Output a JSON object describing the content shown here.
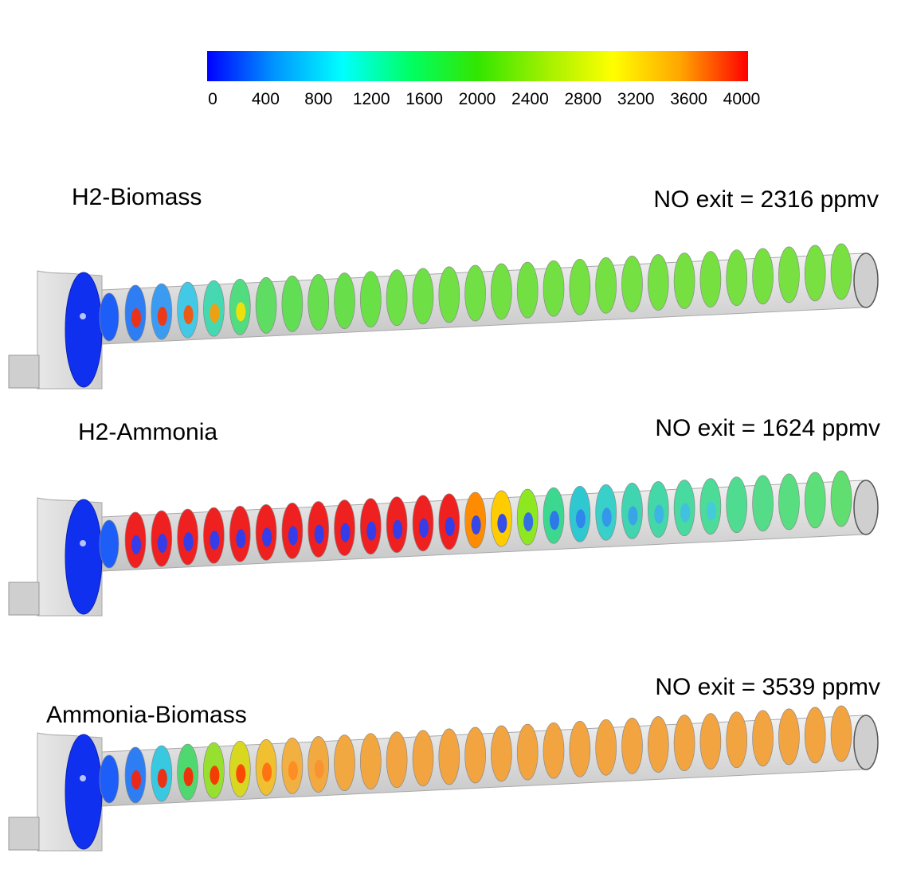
{
  "colorbar": {
    "ticks": [
      "0",
      "400",
      "800",
      "1200",
      "1600",
      "2000",
      "2400",
      "2800",
      "3200",
      "3600",
      "4000"
    ],
    "range": [
      0,
      4000
    ],
    "colors": [
      "#0000ff",
      "#0096ff",
      "#00ffff",
      "#00ff64",
      "#32e600",
      "#a0f000",
      "#ffff00",
      "#ffa500",
      "#ff0000"
    ]
  },
  "cases": [
    {
      "title": "H2-Biomass",
      "exit_label": "NO exit = 2316 ppmv",
      "slice_colors": [
        "#2f7df2",
        "#3a9bf0",
        "#43c8e6",
        "#46d8b0",
        "#52dc80",
        "#5fdc62",
        "#62de55",
        "#66de4e",
        "#68df4a",
        "#6ae047",
        "#6ce046",
        "#6ee045",
        "#70e044",
        "#70e044",
        "#72e043",
        "#72e043",
        "#72e043",
        "#74e042",
        "#74e042",
        "#74e042",
        "#74e042",
        "#76e041",
        "#76e041",
        "#76e041",
        "#76e041",
        "#78e040",
        "#78e040",
        "#78e040"
      ],
      "hotspots": [
        {
          "slice": 1,
          "color": "#ff2a00"
        },
        {
          "slice": 2,
          "color": "#ff3000"
        },
        {
          "slice": 3,
          "color": "#ff5000"
        },
        {
          "slice": 4,
          "color": "#ff9a00"
        },
        {
          "slice": 5,
          "color": "#ffe000"
        }
      ]
    },
    {
      "title": "H2-Ammonia",
      "exit_label": "NO exit = 1624 ppmv",
      "slice_colors": [
        "#ee2020",
        "#ee2020",
        "#ee2020",
        "#ee2020",
        "#ee2020",
        "#ee2020",
        "#ee2020",
        "#ee2020",
        "#ee2020",
        "#ee2020",
        "#ee2020",
        "#ee2020",
        "#ee2020",
        "#ff8c00",
        "#ffcc00",
        "#8ee820",
        "#3cd890",
        "#2fc8d0",
        "#38d0c8",
        "#40d4b0",
        "#44d8a8",
        "#48daa0",
        "#4cdc98",
        "#50dc90",
        "#54dc88",
        "#58de80",
        "#5cde78",
        "#60de70"
      ],
      "hotspots": [
        {
          "slice": 1,
          "color": "#2040ff"
        },
        {
          "slice": 2,
          "color": "#2040ff"
        },
        {
          "slice": 3,
          "color": "#2040ff"
        },
        {
          "slice": 4,
          "color": "#2040ff"
        },
        {
          "slice": 5,
          "color": "#2040ff"
        },
        {
          "slice": 6,
          "color": "#2040ff"
        },
        {
          "slice": 7,
          "color": "#2040ff"
        },
        {
          "slice": 8,
          "color": "#2040ff"
        },
        {
          "slice": 9,
          "color": "#2040ff"
        },
        {
          "slice": 10,
          "color": "#2040ff"
        },
        {
          "slice": 11,
          "color": "#2040ff"
        },
        {
          "slice": 12,
          "color": "#2040ff"
        },
        {
          "slice": 13,
          "color": "#2040ff"
        },
        {
          "slice": 14,
          "color": "#2040ff"
        },
        {
          "slice": 15,
          "color": "#2040ff"
        },
        {
          "slice": 16,
          "color": "#2a60f8"
        },
        {
          "slice": 17,
          "color": "#2a70f4"
        },
        {
          "slice": 18,
          "color": "#3080f0"
        },
        {
          "slice": 19,
          "color": "#3490ee"
        },
        {
          "slice": 20,
          "color": "#38a0ec"
        },
        {
          "slice": 21,
          "color": "#3cb0ea"
        },
        {
          "slice": 22,
          "color": "#40bce6"
        },
        {
          "slice": 23,
          "color": "#44c8e0"
        }
      ]
    },
    {
      "title": "Ammonia-Biomass",
      "exit_label": "NO exit = 3539 ppmv",
      "slice_colors": [
        "#2f7df2",
        "#38c8e0",
        "#50d870",
        "#98e030",
        "#d8d820",
        "#f0c030",
        "#f2b040",
        "#f2aa40",
        "#f2a840",
        "#f2a640",
        "#f2a440",
        "#f2a440",
        "#f2a440",
        "#f2a440",
        "#f2a440",
        "#f2a440",
        "#f2a440",
        "#f2a440",
        "#f2a440",
        "#f2a440",
        "#f2a440",
        "#f2a440",
        "#f2a440",
        "#f2a440",
        "#f2a440",
        "#f2a440",
        "#f2a440",
        "#f2a440"
      ],
      "hotspots": [
        {
          "slice": 1,
          "color": "#ff2000"
        },
        {
          "slice": 2,
          "color": "#ff2000"
        },
        {
          "slice": 3,
          "color": "#ff2000"
        },
        {
          "slice": 4,
          "color": "#ff2a00"
        },
        {
          "slice": 5,
          "color": "#ff3a00"
        },
        {
          "slice": 6,
          "color": "#ff6a10"
        },
        {
          "slice": 7,
          "color": "#ff8a20"
        },
        {
          "slice": 8,
          "color": "#f89030"
        }
      ]
    }
  ]
}
